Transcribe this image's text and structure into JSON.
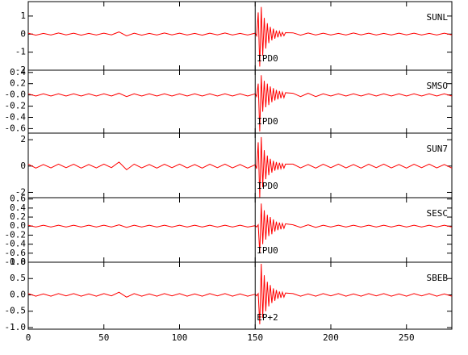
{
  "chart_data": {
    "type": "line",
    "color": "#ff0000",
    "pick_x": 150,
    "xlim": [
      0,
      280
    ],
    "xticks": [
      0,
      50,
      100,
      150,
      200,
      250
    ],
    "x": [
      0,
      5,
      10,
      15,
      20,
      25,
      30,
      35,
      40,
      45,
      50,
      55,
      60,
      65,
      70,
      75,
      80,
      85,
      90,
      95,
      100,
      105,
      110,
      115,
      120,
      125,
      130,
      135,
      140,
      145,
      150,
      151,
      152,
      153,
      154,
      155,
      156,
      157,
      158,
      159,
      160,
      161,
      162,
      163,
      164,
      165,
      166,
      167,
      168,
      169,
      170,
      175,
      180,
      185,
      190,
      195,
      200,
      205,
      210,
      215,
      220,
      225,
      230,
      235,
      240,
      245,
      250,
      255,
      260,
      265,
      270,
      275,
      280
    ],
    "panels": [
      {
        "name": "SUNL",
        "pick_label": "IPD0",
        "ylim": [
          -2,
          1.8
        ],
        "yticks": [
          1,
          0,
          -1,
          -2
        ],
        "values": [
          0.05,
          -0.06,
          0.04,
          -0.05,
          0.06,
          -0.04,
          0.05,
          -0.06,
          0.04,
          -0.05,
          0.05,
          -0.04,
          0.12,
          -0.1,
          0.05,
          -0.06,
          0.04,
          -0.05,
          0.06,
          -0.04,
          0.05,
          -0.05,
          0.04,
          -0.06,
          0.05,
          -0.04,
          0.06,
          -0.05,
          0.04,
          -0.05,
          0.05,
          -0.1,
          1.2,
          -1.8,
          1.5,
          -1.2,
          0.9,
          -0.8,
          0.6,
          -0.5,
          0.4,
          -0.35,
          0.3,
          -0.25,
          0.2,
          -0.18,
          0.15,
          -0.12,
          0.1,
          -0.09,
          0.08,
          0.07,
          -0.06,
          0.06,
          -0.05,
          0.05,
          -0.05,
          0.04,
          -0.05,
          0.06,
          -0.04,
          0.05,
          -0.05,
          0.04,
          -0.05,
          0.05,
          -0.04,
          0.05,
          -0.05,
          0.04,
          -0.05,
          0.05,
          -0.04
        ]
      },
      {
        "name": "SMSO",
        "pick_label": "IPD0",
        "ylim": [
          -0.68,
          0.44
        ],
        "yticks": [
          0.4,
          0.2,
          {
            "value": 0,
            "label": "-0.0"
          },
          -0.2,
          -0.4,
          -0.6
        ],
        "values": [
          0.02,
          -0.02,
          0.02,
          -0.02,
          0.02,
          -0.02,
          0.02,
          -0.02,
          0.02,
          -0.02,
          0.02,
          -0.02,
          0.03,
          -0.03,
          0.02,
          -0.02,
          0.02,
          -0.02,
          0.02,
          -0.02,
          0.02,
          -0.02,
          0.02,
          -0.02,
          0.02,
          -0.02,
          0.02,
          -0.02,
          0.02,
          -0.02,
          0.02,
          -0.03,
          0.2,
          -0.65,
          0.35,
          -0.3,
          0.25,
          -0.22,
          0.2,
          -0.18,
          0.15,
          -0.13,
          0.12,
          -0.1,
          0.09,
          -0.08,
          0.07,
          -0.06,
          0.05,
          -0.05,
          0.04,
          0.03,
          -0.03,
          0.03,
          -0.03,
          0.02,
          -0.02,
          0.02,
          -0.02,
          0.02,
          -0.02,
          0.02,
          -0.02,
          0.02,
          -0.02,
          0.02,
          -0.02,
          0.02,
          -0.02,
          0.02,
          -0.02,
          0.02,
          -0.02
        ]
      },
      {
        "name": "SUN7",
        "pick_label": "IPD0",
        "ylim": [
          -2.4,
          2.5
        ],
        "yticks": [
          2,
          0,
          -2
        ],
        "values": [
          0.15,
          -0.15,
          0.12,
          -0.14,
          0.15,
          -0.12,
          0.14,
          -0.15,
          0.12,
          -0.14,
          0.15,
          -0.12,
          0.3,
          -0.28,
          0.15,
          -0.14,
          0.12,
          -0.15,
          0.14,
          -0.12,
          0.15,
          -0.14,
          0.12,
          -0.15,
          0.14,
          -0.12,
          0.15,
          -0.14,
          0.12,
          -0.15,
          0.1,
          -0.2,
          1.8,
          -2.4,
          2.2,
          -1.6,
          1.2,
          -1.0,
          0.8,
          -0.7,
          0.55,
          -0.5,
          0.4,
          -0.35,
          0.3,
          -0.28,
          0.25,
          -0.2,
          0.18,
          -0.16,
          0.15,
          0.15,
          -0.14,
          0.12,
          -0.15,
          0.14,
          -0.12,
          0.15,
          -0.14,
          0.12,
          -0.15,
          0.14,
          -0.12,
          0.15,
          -0.14,
          0.12,
          -0.15,
          0.14,
          -0.12,
          0.15,
          -0.14,
          0.12,
          -0.15
        ]
      },
      {
        "name": "SESC",
        "pick_label": "IPU0",
        "ylim": [
          -0.8,
          0.63
        ],
        "yticks": [
          0.6,
          0.4,
          0.2,
          {
            "value": 0,
            "label": "0.0"
          },
          -0.2,
          -0.4,
          -0.6,
          -0.8
        ],
        "values": [
          0.02,
          -0.02,
          0.02,
          -0.02,
          0.02,
          -0.02,
          0.02,
          -0.02,
          0.02,
          -0.02,
          0.02,
          -0.02,
          0.03,
          -0.03,
          0.02,
          -0.02,
          0.02,
          -0.02,
          0.02,
          -0.02,
          0.02,
          -0.02,
          0.02,
          -0.02,
          0.02,
          -0.02,
          0.02,
          -0.02,
          0.02,
          -0.02,
          0.01,
          -0.02,
          0.03,
          -0.6,
          0.5,
          -0.4,
          0.35,
          -0.3,
          0.25,
          -0.22,
          0.2,
          -0.18,
          0.15,
          -0.12,
          0.1,
          -0.09,
          0.08,
          -0.07,
          0.06,
          -0.05,
          0.05,
          0.03,
          -0.03,
          0.03,
          -0.03,
          0.02,
          -0.02,
          0.02,
          -0.02,
          0.02,
          -0.02,
          0.02,
          -0.02,
          0.02,
          -0.02,
          0.02,
          -0.02,
          0.02,
          -0.02,
          0.02,
          -0.02,
          0.02,
          -0.02
        ]
      },
      {
        "name": "SBEB",
        "pick_label": "EP+2",
        "ylim": [
          -1.05,
          1
        ],
        "yticks": [
          {
            "value": 1,
            "label": "1.0"
          },
          0.5,
          {
            "value": 0,
            "label": "0.0"
          },
          -0.5,
          {
            "value": -1,
            "label": "-1.0"
          }
        ],
        "values": [
          0.04,
          -0.04,
          0.03,
          -0.04,
          0.04,
          -0.03,
          0.04,
          -0.04,
          0.03,
          -0.04,
          0.04,
          -0.03,
          0.08,
          -0.07,
          0.04,
          -0.04,
          0.03,
          -0.04,
          0.04,
          -0.03,
          0.04,
          -0.04,
          0.03,
          -0.04,
          0.04,
          -0.03,
          0.04,
          -0.04,
          0.03,
          -0.04,
          0.02,
          -0.03,
          0.04,
          -0.9,
          0.95,
          -0.7,
          0.6,
          -0.5,
          0.4,
          -0.35,
          0.3,
          -0.25,
          0.2,
          -0.18,
          0.15,
          -0.12,
          0.1,
          -0.09,
          0.08,
          -0.07,
          0.06,
          0.04,
          -0.04,
          0.03,
          -0.04,
          0.04,
          -0.03,
          0.04,
          -0.04,
          0.03,
          -0.04,
          0.04,
          -0.03,
          0.04,
          -0.04,
          0.03,
          -0.04,
          0.04,
          -0.03,
          0.04,
          -0.04,
          0.03,
          -0.04
        ]
      }
    ]
  }
}
